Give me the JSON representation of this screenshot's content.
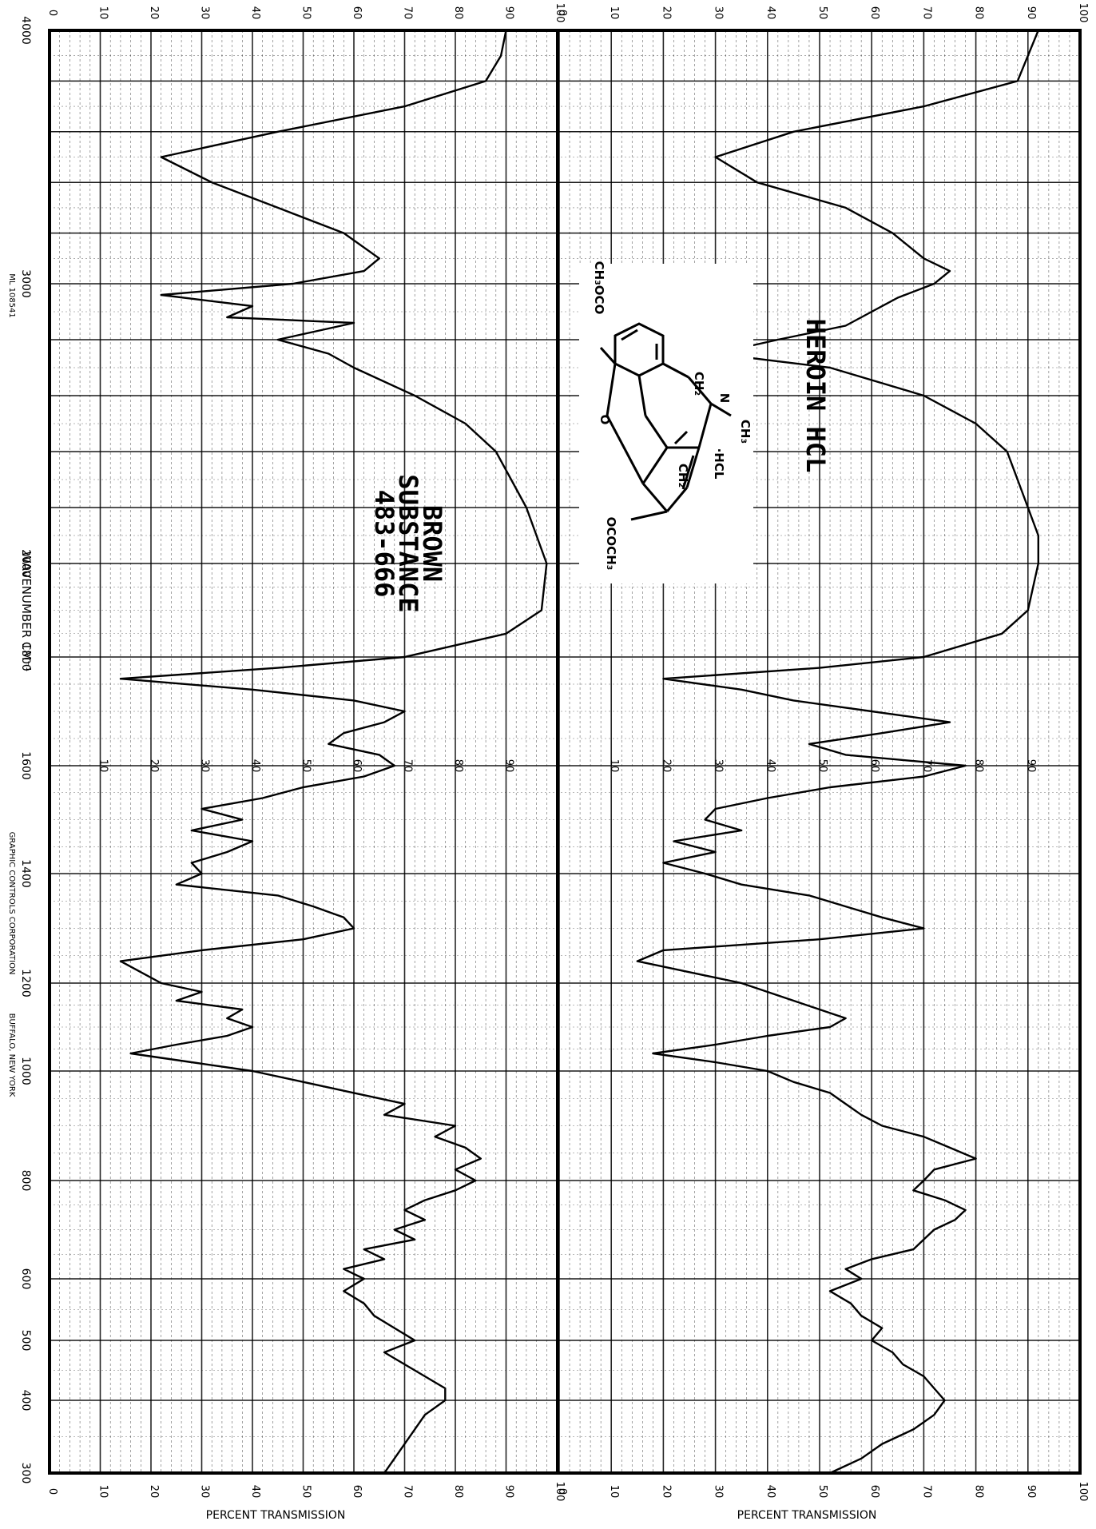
{
  "chart_data": {
    "type": "line",
    "orientation": "rotated 90 degrees clockwise (wavenumber runs top to bottom, transmission left to right)",
    "x_ticks": [
      "4000",
      "3000",
      "2000",
      "1800",
      "1600",
      "1400",
      "1200",
      "1000",
      "800",
      "600",
      "500",
      "400",
      "300"
    ],
    "xlabel": "WAVENUMBER CM⁻¹",
    "ylabel": "PERCENT TRANSMISSION",
    "ylim": [
      0,
      100
    ],
    "y_ticks_left": [
      "0",
      "10",
      "20",
      "30",
      "40",
      "50",
      "60",
      "70",
      "80",
      "90",
      "100"
    ],
    "y_ticks_right": [
      "0",
      "10",
      "20",
      "30",
      "40",
      "50",
      "60",
      "70",
      "80",
      "90",
      "100"
    ],
    "inner_ticks_left": [
      "10",
      "20",
      "30",
      "40",
      "50",
      "60",
      "70",
      "80",
      "90"
    ],
    "inner_ticks_right": [
      "10",
      "20",
      "30",
      "40",
      "50",
      "60",
      "70",
      "80",
      "90"
    ],
    "series": [
      {
        "name": "BROWN SUBSTANCE 483-666",
        "panel": "left",
        "points": [
          [
            4000,
            90
          ],
          [
            3900,
            89
          ],
          [
            3800,
            86
          ],
          [
            3700,
            70
          ],
          [
            3600,
            45
          ],
          [
            3500,
            22
          ],
          [
            3400,
            32
          ],
          [
            3300,
            45
          ],
          [
            3200,
            58
          ],
          [
            3100,
            65
          ],
          [
            3050,
            62
          ],
          [
            3000,
            48
          ],
          [
            2960,
            22
          ],
          [
            2920,
            40
          ],
          [
            2880,
            35
          ],
          [
            2860,
            60
          ],
          [
            2800,
            45
          ],
          [
            2750,
            55
          ],
          [
            2700,
            60
          ],
          [
            2600,
            72
          ],
          [
            2500,
            82
          ],
          [
            2400,
            88
          ],
          [
            2300,
            91
          ],
          [
            2200,
            94
          ],
          [
            2100,
            96
          ],
          [
            2000,
            98
          ],
          [
            1900,
            97
          ],
          [
            1850,
            90
          ],
          [
            1800,
            70
          ],
          [
            1780,
            45
          ],
          [
            1760,
            14
          ],
          [
            1740,
            40
          ],
          [
            1720,
            60
          ],
          [
            1700,
            70
          ],
          [
            1680,
            66
          ],
          [
            1660,
            58
          ],
          [
            1640,
            55
          ],
          [
            1620,
            65
          ],
          [
            1600,
            68
          ],
          [
            1580,
            62
          ],
          [
            1560,
            50
          ],
          [
            1540,
            42
          ],
          [
            1520,
            30
          ],
          [
            1500,
            38
          ],
          [
            1480,
            28
          ],
          [
            1460,
            40
          ],
          [
            1440,
            35
          ],
          [
            1420,
            28
          ],
          [
            1400,
            30
          ],
          [
            1380,
            25
          ],
          [
            1360,
            45
          ],
          [
            1340,
            52
          ],
          [
            1320,
            58
          ],
          [
            1300,
            60
          ],
          [
            1280,
            50
          ],
          [
            1260,
            30
          ],
          [
            1240,
            14
          ],
          [
            1220,
            18
          ],
          [
            1200,
            22
          ],
          [
            1180,
            30
          ],
          [
            1160,
            25
          ],
          [
            1140,
            38
          ],
          [
            1120,
            35
          ],
          [
            1100,
            40
          ],
          [
            1080,
            35
          ],
          [
            1060,
            25
          ],
          [
            1040,
            16
          ],
          [
            1020,
            28
          ],
          [
            1000,
            40
          ],
          [
            980,
            50
          ],
          [
            960,
            60
          ],
          [
            940,
            70
          ],
          [
            920,
            66
          ],
          [
            900,
            80
          ],
          [
            880,
            76
          ],
          [
            860,
            82
          ],
          [
            840,
            85
          ],
          [
            820,
            80
          ],
          [
            800,
            84
          ],
          [
            780,
            80
          ],
          [
            760,
            74
          ],
          [
            740,
            70
          ],
          [
            720,
            74
          ],
          [
            700,
            68
          ],
          [
            680,
            72
          ],
          [
            660,
            62
          ],
          [
            640,
            66
          ],
          [
            620,
            58
          ],
          [
            600,
            62
          ],
          [
            580,
            58
          ],
          [
            560,
            62
          ],
          [
            540,
            64
          ],
          [
            520,
            68
          ],
          [
            500,
            72
          ],
          [
            480,
            66
          ],
          [
            460,
            70
          ],
          [
            440,
            74
          ],
          [
            420,
            78
          ],
          [
            400,
            78
          ],
          [
            380,
            74
          ],
          [
            360,
            72
          ],
          [
            340,
            70
          ],
          [
            320,
            68
          ],
          [
            300,
            66
          ]
        ]
      },
      {
        "name": "HEROIN HCL",
        "panel": "right",
        "points": [
          [
            4000,
            92
          ],
          [
            3900,
            90
          ],
          [
            3800,
            88
          ],
          [
            3700,
            70
          ],
          [
            3600,
            45
          ],
          [
            3500,
            30
          ],
          [
            3400,
            38
          ],
          [
            3300,
            55
          ],
          [
            3200,
            64
          ],
          [
            3100,
            70
          ],
          [
            3050,
            75
          ],
          [
            3000,
            72
          ],
          [
            2950,
            65
          ],
          [
            2900,
            60
          ],
          [
            2850,
            55
          ],
          [
            2800,
            42
          ],
          [
            2750,
            30
          ],
          [
            2700,
            52
          ],
          [
            2600,
            70
          ],
          [
            2500,
            80
          ],
          [
            2400,
            86
          ],
          [
            2300,
            88
          ],
          [
            2200,
            90
          ],
          [
            2100,
            92
          ],
          [
            2000,
            92
          ],
          [
            1900,
            90
          ],
          [
            1850,
            85
          ],
          [
            1800,
            70
          ],
          [
            1780,
            50
          ],
          [
            1760,
            20
          ],
          [
            1740,
            35
          ],
          [
            1720,
            45
          ],
          [
            1700,
            60
          ],
          [
            1680,
            75
          ],
          [
            1660,
            62
          ],
          [
            1640,
            48
          ],
          [
            1620,
            55
          ],
          [
            1600,
            78
          ],
          [
            1580,
            70
          ],
          [
            1560,
            52
          ],
          [
            1540,
            40
          ],
          [
            1520,
            30
          ],
          [
            1500,
            28
          ],
          [
            1480,
            35
          ],
          [
            1460,
            22
          ],
          [
            1440,
            30
          ],
          [
            1420,
            20
          ],
          [
            1400,
            28
          ],
          [
            1380,
            35
          ],
          [
            1360,
            48
          ],
          [
            1340,
            55
          ],
          [
            1320,
            62
          ],
          [
            1300,
            70
          ],
          [
            1280,
            50
          ],
          [
            1260,
            20
          ],
          [
            1240,
            15
          ],
          [
            1220,
            25
          ],
          [
            1200,
            35
          ],
          [
            1180,
            40
          ],
          [
            1160,
            45
          ],
          [
            1140,
            50
          ],
          [
            1120,
            55
          ],
          [
            1100,
            52
          ],
          [
            1080,
            40
          ],
          [
            1060,
            30
          ],
          [
            1040,
            18
          ],
          [
            1020,
            30
          ],
          [
            1000,
            40
          ],
          [
            980,
            45
          ],
          [
            960,
            52
          ],
          [
            940,
            55
          ],
          [
            920,
            58
          ],
          [
            900,
            62
          ],
          [
            880,
            70
          ],
          [
            860,
            75
          ],
          [
            840,
            80
          ],
          [
            820,
            72
          ],
          [
            800,
            70
          ],
          [
            780,
            68
          ],
          [
            760,
            74
          ],
          [
            740,
            78
          ],
          [
            720,
            76
          ],
          [
            700,
            72
          ],
          [
            680,
            70
          ],
          [
            660,
            68
          ],
          [
            640,
            60
          ],
          [
            620,
            55
          ],
          [
            600,
            58
          ],
          [
            580,
            52
          ],
          [
            560,
            56
          ],
          [
            540,
            58
          ],
          [
            520,
            62
          ],
          [
            500,
            60
          ],
          [
            480,
            64
          ],
          [
            460,
            66
          ],
          [
            440,
            70
          ],
          [
            420,
            72
          ],
          [
            400,
            74
          ],
          [
            380,
            72
          ],
          [
            360,
            68
          ],
          [
            340,
            62
          ],
          [
            320,
            58
          ],
          [
            300,
            52
          ]
        ]
      }
    ],
    "annotations": {
      "left_title": [
        "BROWN",
        "SUBSTANCE",
        "483-666"
      ],
      "right_title": "HEROIN HCL",
      "structure_labels": [
        "CH₃OCO",
        "O",
        "N",
        "CH₃",
        "·HCL",
        "CH₂",
        "CH₂",
        "OCOCH₃"
      ],
      "footer_left": "ML 108541",
      "footer_company": "GRAPHIC CONTROLS CORPORATION",
      "footer_city": "BUFFALO, NEW YORK"
    },
    "grid": true
  }
}
